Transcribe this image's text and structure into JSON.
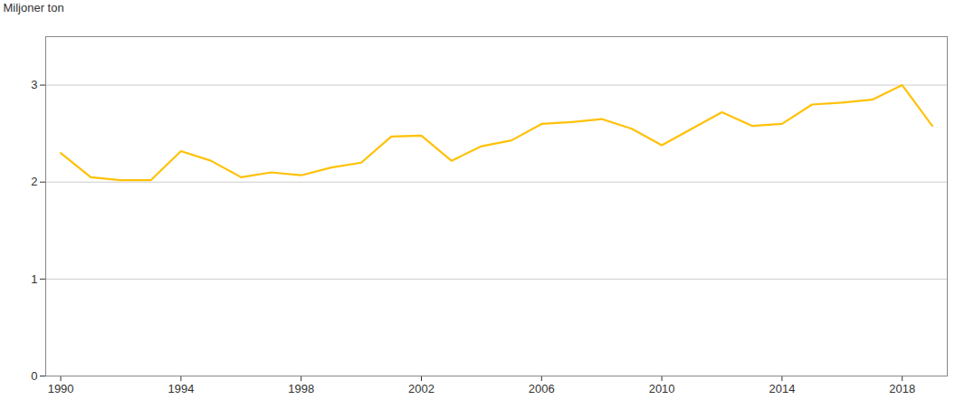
{
  "chart_data": {
    "type": "line",
    "ylabel": "Miljoner ton",
    "x": [
      1990,
      1991,
      1992,
      1993,
      1994,
      1995,
      1996,
      1997,
      1998,
      1999,
      2000,
      2001,
      2002,
      2003,
      2004,
      2005,
      2006,
      2007,
      2008,
      2009,
      2010,
      2011,
      2012,
      2013,
      2014,
      2015,
      2016,
      2017,
      2018,
      2019
    ],
    "values": [
      2.3,
      2.05,
      2.02,
      2.02,
      2.32,
      2.22,
      2.05,
      2.1,
      2.07,
      2.15,
      2.2,
      2.47,
      2.48,
      2.22,
      2.37,
      2.43,
      2.6,
      2.62,
      2.65,
      2.55,
      2.38,
      2.55,
      2.72,
      2.58,
      2.6,
      2.8,
      2.82,
      2.85,
      3.0,
      2.58
    ],
    "color": "#FFC107",
    "xlim": [
      1989.5,
      2019.5
    ],
    "xticks": [
      1990,
      1994,
      1998,
      2002,
      2006,
      2010,
      2014,
      2018
    ],
    "ylim": [
      0,
      3.5
    ],
    "yticks": [
      0,
      1,
      2,
      3
    ],
    "grid": "y"
  }
}
